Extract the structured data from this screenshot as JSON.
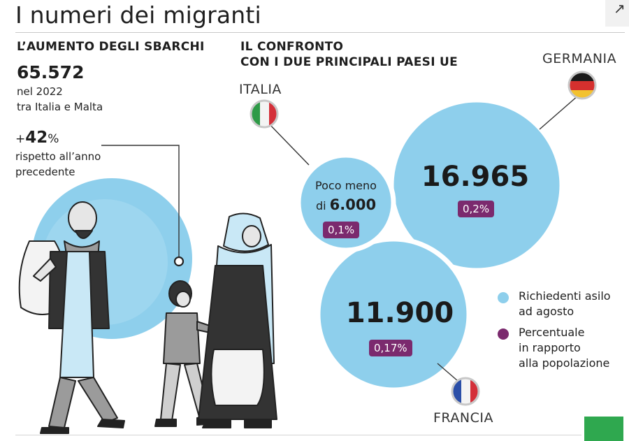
{
  "title": "I numeri dei migranti",
  "left": {
    "heading": "L’AUMENTO DEGLI SBARCHI",
    "total": "65.572",
    "total_desc_1": "nel 2022",
    "total_desc_2": "tra Italia e Malta",
    "pct_sign": "+",
    "pct_value": "42",
    "pct_unit": "%",
    "pct_desc_1": "rispetto all’anno",
    "pct_desc_2": "precedente"
  },
  "right": {
    "heading_1": "IL CONFRONTO",
    "heading_2": "CON I DUE PRINCIPALI PAESI UE"
  },
  "countries": {
    "italia": {
      "label": "ITALIA",
      "line1": "Poco meno",
      "line2_prefix": "di ",
      "line2_value": "6.000",
      "badge": "0,1%"
    },
    "germania": {
      "label": "GERMANIA",
      "value": "16.965",
      "badge": "0,2%"
    },
    "francia": {
      "label": "FRANCIA",
      "value": "11.900",
      "badge": "0,17%"
    }
  },
  "legend": {
    "item1_1": "Richiedenti asilo",
    "item1_2": "ad agosto",
    "item2_1": "Percentuale",
    "item2_2": "in rapporto",
    "item2_3": "alla popolazione"
  },
  "colors": {
    "bubble": "#8ecfec",
    "badge": "#7b2a6e",
    "accent_green": "#2fa84f"
  }
}
